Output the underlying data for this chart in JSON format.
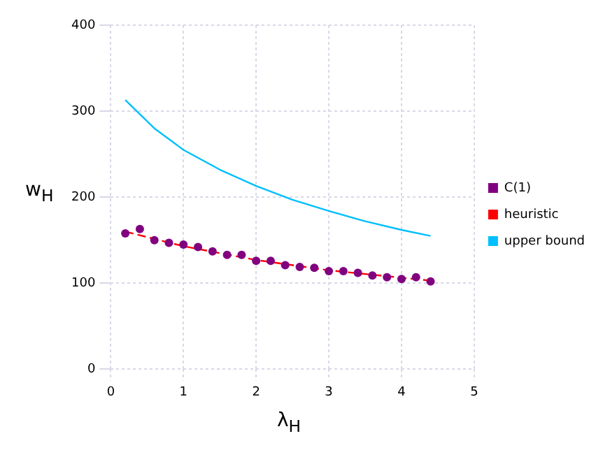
{
  "chart_data": {
    "type": "scatter",
    "xlabel": "λ$_{H}$",
    "ylabel": "w$_{H}$",
    "xlim": [
      0,
      5
    ],
    "xticks": [
      0,
      1,
      2,
      3,
      4,
      5
    ],
    "ylim": [
      0,
      400
    ],
    "yticks": [
      0,
      100,
      200,
      300,
      400
    ],
    "grid": true,
    "legend": "right",
    "series": [
      {
        "name": "C(1)",
        "color": "#800080",
        "marker": "circle",
        "x": [
          0.2,
          0.4,
          0.6,
          0.8,
          1.0,
          1.2,
          1.4,
          1.6,
          1.8,
          2.0,
          2.2,
          2.4,
          2.6,
          2.8,
          3.0,
          3.2,
          3.4,
          3.6,
          3.8,
          4.0,
          4.2,
          4.4
        ],
        "values": [
          158,
          163,
          150,
          147,
          145,
          142,
          137,
          133,
          133,
          126,
          126,
          121,
          119,
          118,
          114,
          114,
          112,
          109,
          107,
          105,
          107,
          102
        ]
      },
      {
        "name": "heuristic",
        "type": "line",
        "color": "#ff0000",
        "line_style": "dashed",
        "marker": "none",
        "x": [
          0.2,
          1.0,
          2.0,
          3.0,
          4.4
        ],
        "values": [
          160,
          143,
          127,
          115,
          103
        ]
      },
      {
        "name": "upper bound",
        "type": "line",
        "color": "#00bfff",
        "line_style": "solid",
        "marker": "none",
        "x": [
          0.2,
          0.6,
          1.0,
          1.5,
          2.0,
          2.5,
          3.0,
          3.5,
          4.0,
          4.4
        ],
        "values": [
          313,
          280,
          255,
          232,
          213,
          197,
          184,
          172,
          162,
          155
        ]
      }
    ]
  }
}
